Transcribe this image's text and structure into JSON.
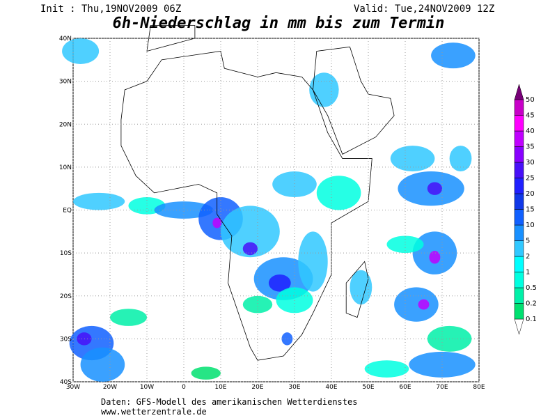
{
  "header": {
    "init": "Init : Thu,19NOV2009 06Z",
    "valid": "Valid: Tue,24NOV2009 12Z",
    "title": "6h-Niederschlag in mm bis zum Termin"
  },
  "map": {
    "lon_ticks": [
      "30W",
      "20W",
      "10W",
      "0",
      "10E",
      "20E",
      "30E",
      "40E",
      "50E",
      "60E",
      "70E",
      "80E"
    ],
    "lat_ticks": [
      "40N",
      "30N",
      "20N",
      "10N",
      "EQ",
      "10S",
      "20S",
      "30S",
      "40S"
    ]
  },
  "legend": {
    "levels": [
      0.1,
      0.2,
      0.5,
      1,
      2,
      5,
      10,
      15,
      20,
      25,
      30,
      35,
      40,
      45,
      50
    ],
    "colors": [
      "#00e070",
      "#00f0a8",
      "#00ffe0",
      "#00ffff",
      "#30c8ff",
      "#1890ff",
      "#1060ff",
      "#1038e8",
      "#2020ff",
      "#4810f8",
      "#8800ff",
      "#c000ff",
      "#ff00ff",
      "#c800c8",
      "#780078"
    ]
  },
  "footer": {
    "source": "Daten: GFS-Modell des amerikanischen Wetterdienstes",
    "url": "www.wetterzentrale.de"
  }
}
